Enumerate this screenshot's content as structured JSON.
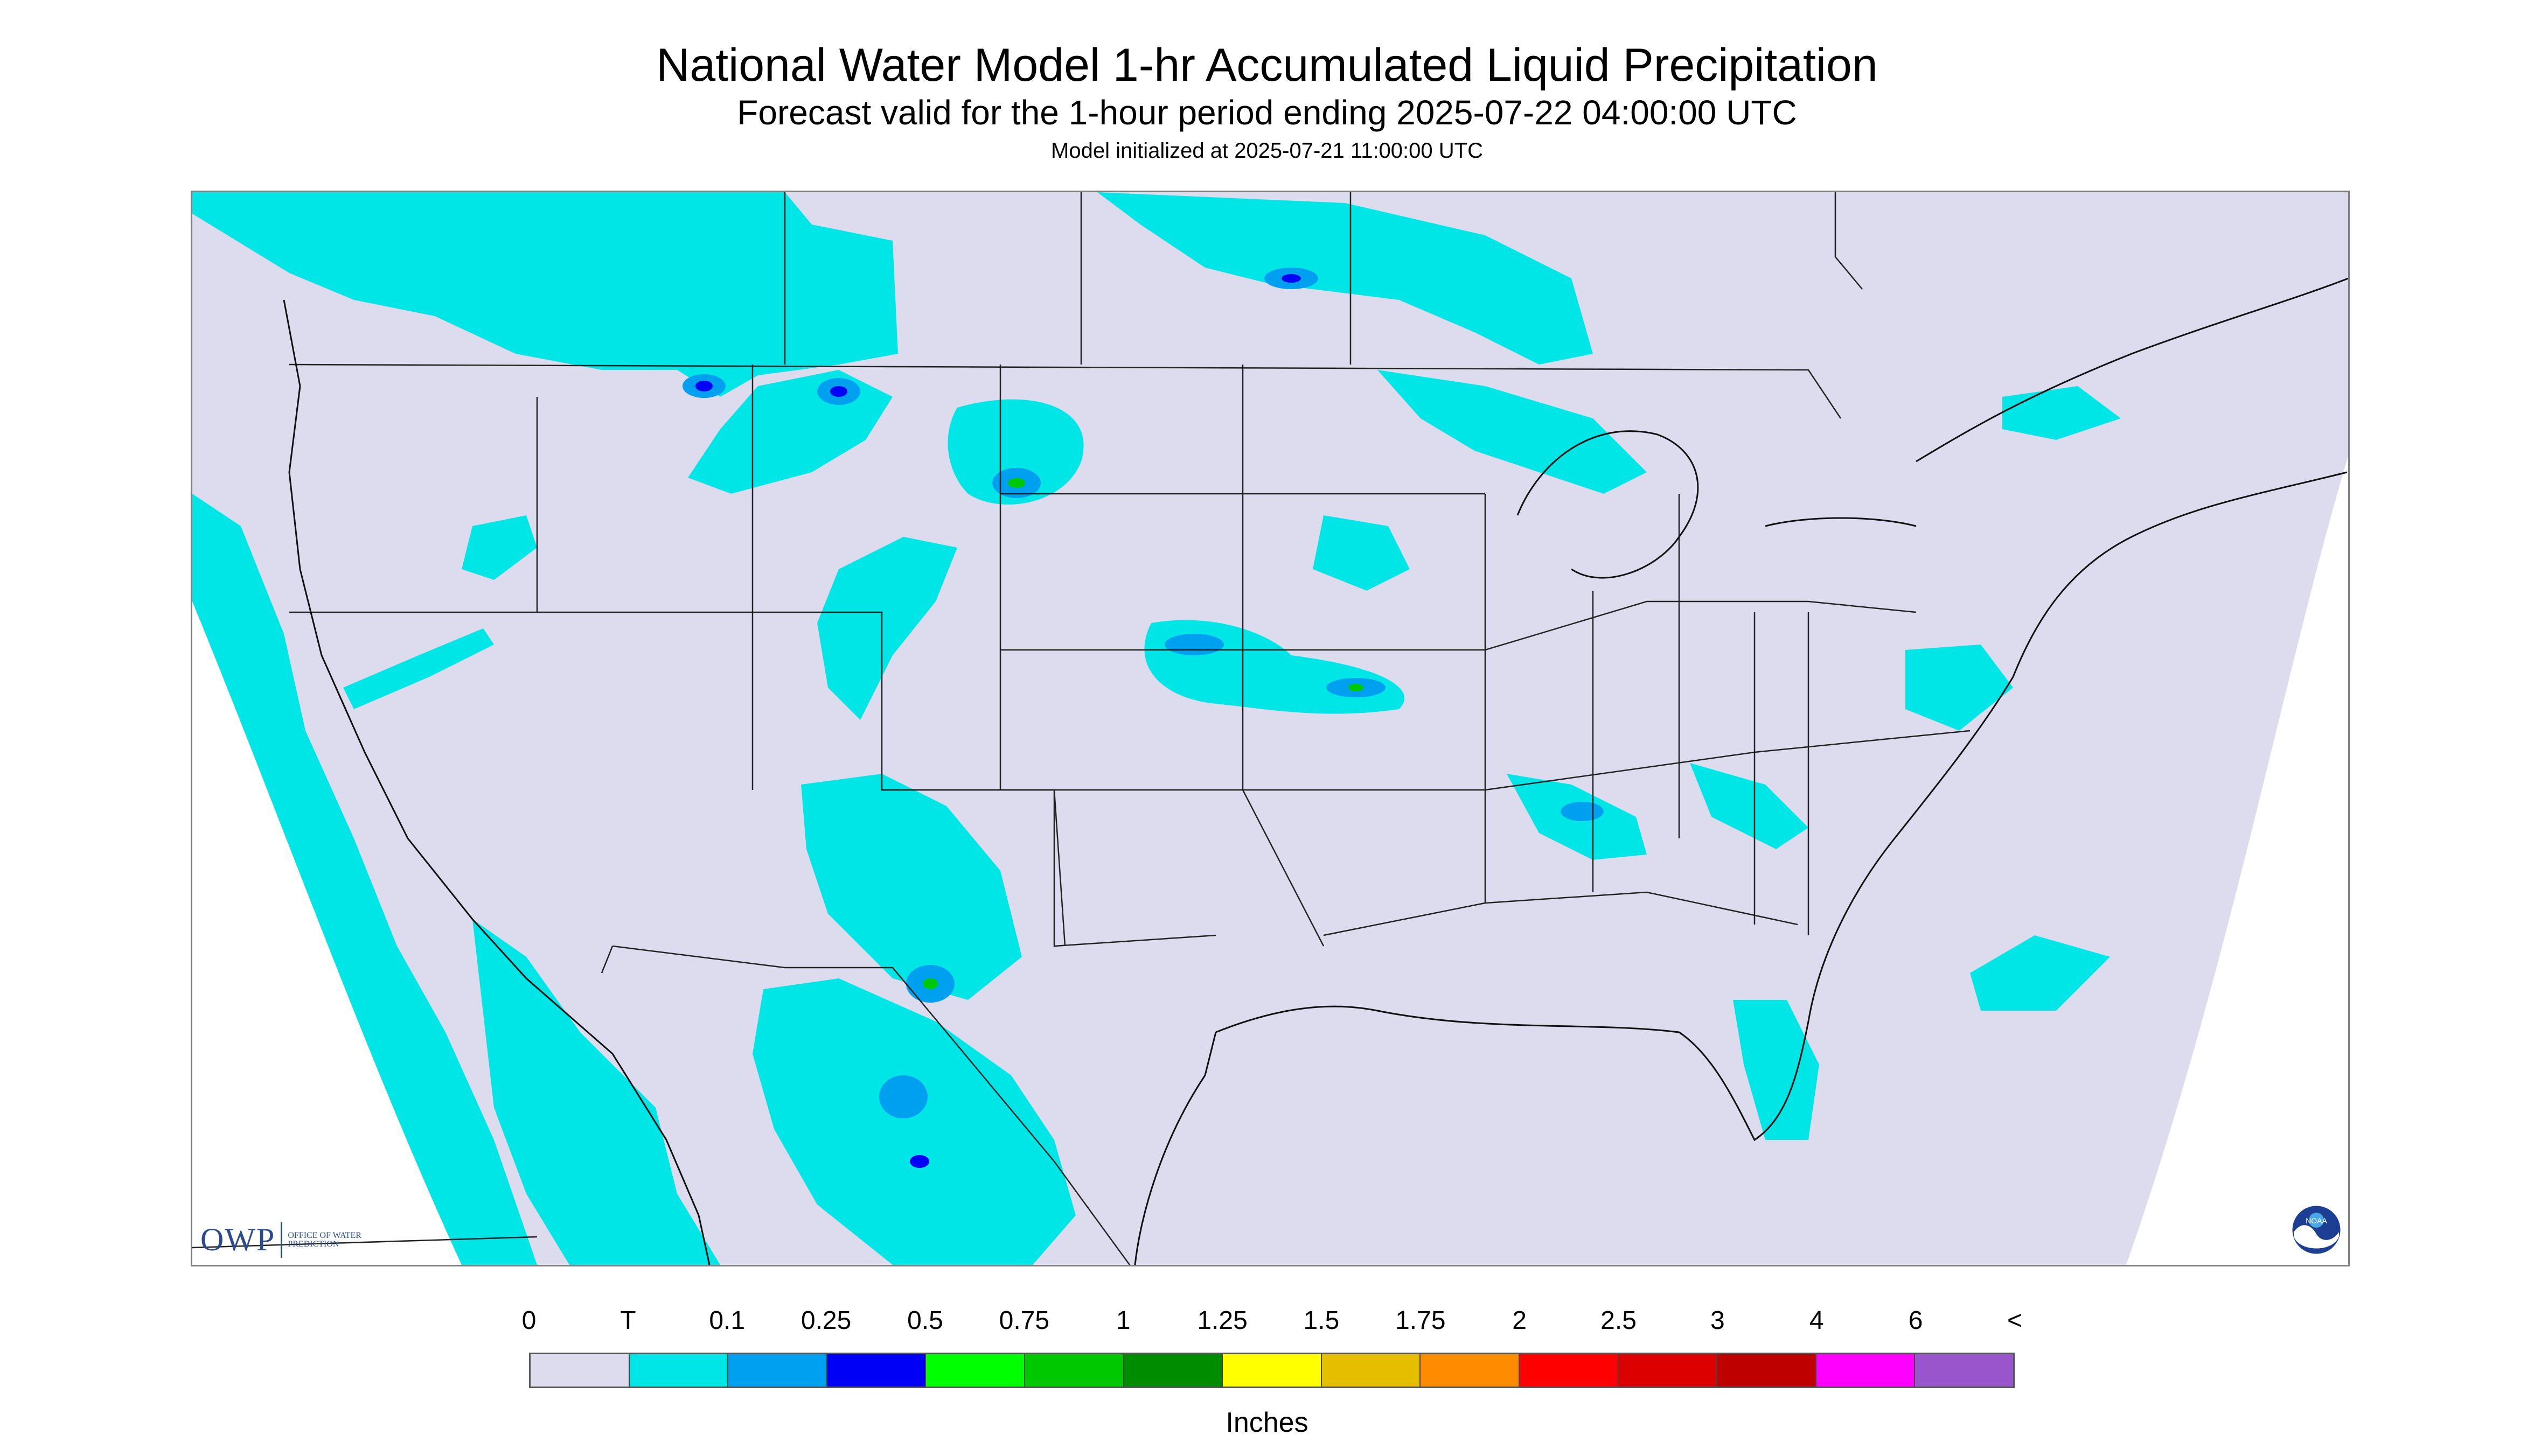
{
  "header": {
    "title": "National Water Model 1-hr Accumulated Liquid Precipitation",
    "subtitle": "Forecast valid for the 1-hour period ending 2025-07-22 04:00:00 UTC",
    "init_line": "Model initialized at 2025-07-21 11:00:00 UTC"
  },
  "logos": {
    "owp_mark": "OWP",
    "owp_name": "OFFICE OF WATER PREDICTION",
    "noaa_icon": "noaa-logo-icon",
    "noaa_text": "NOAA"
  },
  "colors": {
    "no_data_region": "#dcdcee",
    "land_outline": "#222222",
    "trace": "#00e5e5"
  },
  "legend": {
    "units_label": "Inches",
    "tick_labels": [
      "0",
      "T",
      "0.1",
      "0.25",
      "0.5",
      "0.75",
      "1",
      "1.25",
      "1.5",
      "1.75",
      "2",
      "2.5",
      "3",
      "4",
      "6",
      "<"
    ],
    "swatch_colors": [
      "#dcdcee",
      "#00e6e6",
      "#00a0f0",
      "#0000f6",
      "#00ff00",
      "#00c800",
      "#008c00",
      "#ffff00",
      "#e6be00",
      "#ff8c00",
      "#ff0000",
      "#dc0000",
      "#be0000",
      "#ff00ff",
      "#9955cc"
    ]
  }
}
